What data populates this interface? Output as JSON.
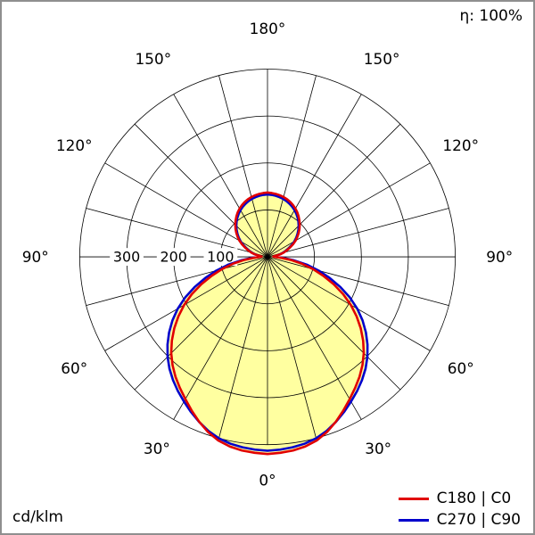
{
  "chart_data": {
    "type": "line",
    "polar": true,
    "subtype": "photometric-polar-intensity-diagram",
    "unit": "cd/klm",
    "annotations": {
      "efficiency": "η: 100%"
    },
    "gamma_deg": [
      0,
      15,
      30,
      45,
      60,
      75,
      90,
      105,
      120,
      135,
      150,
      165,
      180
    ],
    "series": [
      {
        "name": "C180 | C0",
        "color": "#e10000",
        "values": [
          420,
          405,
          350,
          290,
          205,
          100,
          15,
          36,
          69,
          97,
          119,
          132,
          137
        ]
      },
      {
        "name": "C270 | C90",
        "color": "#0000cc",
        "values": [
          413,
          400,
          356,
          301,
          221,
          113,
          17,
          34,
          66,
          94,
          115,
          128,
          133
        ]
      }
    ],
    "r_axis": {
      "rings": [
        100,
        200,
        300,
        400
      ],
      "tick_labels": [
        "100",
        "200",
        "300"
      ],
      "max": 400
    },
    "angle_axis": {
      "labels": [
        "0°",
        "30°",
        "60°",
        "90°",
        "120°",
        "150°",
        "180°"
      ],
      "grid_step_deg": 15,
      "label_step_deg": 30,
      "zero_position": "bottom"
    },
    "fill_color": "#ffffa0",
    "grid_color": "#000000",
    "legend_position": "bottom-right"
  }
}
